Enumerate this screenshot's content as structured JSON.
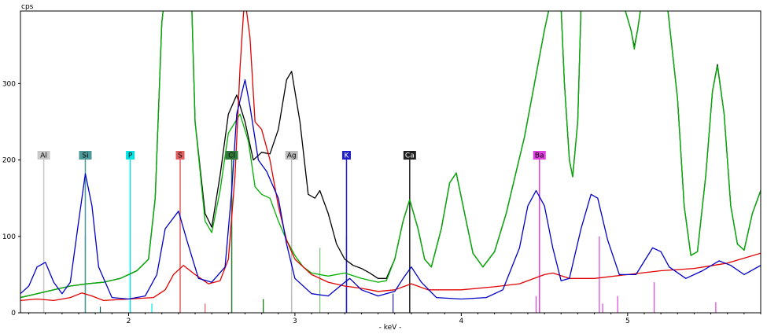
{
  "chart_data": {
    "type": "line",
    "ylabel": "cps",
    "xlabel": "- keV -",
    "xlim": [
      1.35,
      5.8
    ],
    "ylim": [
      0,
      395
    ],
    "xticks": [
      2,
      3,
      4,
      5
    ],
    "yticks": [
      0,
      100,
      200,
      300
    ],
    "grid": false,
    "series": [
      {
        "color": "#000000",
        "points": [
          [
            1.35,
            20
          ],
          [
            1.45,
            25
          ],
          [
            1.55,
            30
          ],
          [
            1.65,
            35
          ],
          [
            1.75,
            38
          ],
          [
            1.85,
            40
          ],
          [
            1.95,
            45
          ],
          [
            2.05,
            55
          ],
          [
            2.12,
            70
          ],
          [
            2.16,
            150
          ],
          [
            2.2,
            380
          ],
          [
            2.21,
            400
          ],
          [
            2.38,
            400
          ],
          [
            2.4,
            250
          ],
          [
            2.46,
            130
          ],
          [
            2.5,
            112
          ],
          [
            2.55,
            180
          ],
          [
            2.6,
            260
          ],
          [
            2.65,
            285
          ],
          [
            2.7,
            250
          ],
          [
            2.75,
            200
          ],
          [
            2.8,
            210
          ],
          [
            2.85,
            208
          ],
          [
            2.9,
            240
          ],
          [
            2.95,
            305
          ],
          [
            2.98,
            316
          ],
          [
            3.03,
            250
          ],
          [
            3.08,
            155
          ],
          [
            3.12,
            150
          ],
          [
            3.15,
            160
          ],
          [
            3.2,
            130
          ],
          [
            3.25,
            90
          ],
          [
            3.3,
            70
          ],
          [
            3.35,
            62
          ],
          [
            3.4,
            58
          ],
          [
            3.45,
            52
          ],
          [
            3.5,
            45
          ],
          [
            3.55,
            45
          ],
          [
            3.6,
            70
          ],
          [
            3.65,
            120
          ],
          [
            3.69,
            148
          ],
          [
            3.74,
            110
          ],
          [
            3.78,
            70
          ],
          [
            3.82,
            60
          ],
          [
            3.88,
            110
          ],
          [
            3.93,
            170
          ],
          [
            3.97,
            183
          ],
          [
            4.02,
            130
          ],
          [
            4.07,
            78
          ],
          [
            4.13,
            60
          ],
          [
            4.2,
            80
          ],
          [
            4.27,
            130
          ],
          [
            4.33,
            185
          ],
          [
            4.38,
            230
          ],
          [
            4.44,
            300
          ],
          [
            4.5,
            370
          ],
          [
            4.53,
            400
          ],
          [
            4.6,
            400
          ],
          [
            4.62,
            300
          ],
          [
            4.65,
            200
          ],
          [
            4.67,
            178
          ],
          [
            4.7,
            250
          ],
          [
            4.72,
            400
          ],
          [
            4.98,
            400
          ],
          [
            5.02,
            370
          ],
          [
            5.04,
            348
          ],
          [
            5.06,
            370
          ],
          [
            5.08,
            400
          ],
          [
            5.24,
            400
          ],
          [
            5.3,
            280
          ],
          [
            5.34,
            140
          ],
          [
            5.38,
            75
          ],
          [
            5.42,
            80
          ],
          [
            5.47,
            180
          ],
          [
            5.51,
            290
          ],
          [
            5.54,
            325
          ],
          [
            5.58,
            260
          ],
          [
            5.62,
            140
          ],
          [
            5.66,
            90
          ],
          [
            5.7,
            82
          ],
          [
            5.75,
            130
          ],
          [
            5.8,
            160
          ]
        ]
      },
      {
        "color": "#00b000",
        "points": [
          [
            1.35,
            20
          ],
          [
            1.45,
            25
          ],
          [
            1.55,
            30
          ],
          [
            1.65,
            35
          ],
          [
            1.75,
            38
          ],
          [
            1.85,
            40
          ],
          [
            1.95,
            45
          ],
          [
            2.05,
            55
          ],
          [
            2.12,
            70
          ],
          [
            2.16,
            150
          ],
          [
            2.2,
            380
          ],
          [
            2.21,
            400
          ],
          [
            2.38,
            400
          ],
          [
            2.4,
            250
          ],
          [
            2.46,
            120
          ],
          [
            2.5,
            105
          ],
          [
            2.55,
            160
          ],
          [
            2.6,
            235
          ],
          [
            2.67,
            260
          ],
          [
            2.72,
            225
          ],
          [
            2.76,
            165
          ],
          [
            2.8,
            155
          ],
          [
            2.85,
            150
          ],
          [
            2.9,
            120
          ],
          [
            2.95,
            95
          ],
          [
            3.0,
            75
          ],
          [
            3.05,
            60
          ],
          [
            3.1,
            52
          ],
          [
            3.2,
            48
          ],
          [
            3.3,
            52
          ],
          [
            3.4,
            45
          ],
          [
            3.5,
            40
          ],
          [
            3.55,
            42
          ],
          [
            3.6,
            70
          ],
          [
            3.65,
            120
          ],
          [
            3.69,
            148
          ],
          [
            3.74,
            110
          ],
          [
            3.78,
            70
          ],
          [
            3.82,
            60
          ],
          [
            3.88,
            110
          ],
          [
            3.93,
            170
          ],
          [
            3.97,
            183
          ],
          [
            4.02,
            130
          ],
          [
            4.07,
            78
          ],
          [
            4.13,
            60
          ],
          [
            4.2,
            80
          ],
          [
            4.27,
            130
          ],
          [
            4.33,
            185
          ],
          [
            4.38,
            230
          ],
          [
            4.44,
            300
          ],
          [
            4.5,
            370
          ],
          [
            4.53,
            400
          ],
          [
            4.6,
            400
          ],
          [
            4.62,
            300
          ],
          [
            4.65,
            200
          ],
          [
            4.67,
            178
          ],
          [
            4.7,
            250
          ],
          [
            4.72,
            400
          ],
          [
            4.98,
            400
          ],
          [
            5.02,
            370
          ],
          [
            5.04,
            345
          ],
          [
            5.06,
            370
          ],
          [
            5.08,
            400
          ],
          [
            5.24,
            400
          ],
          [
            5.3,
            280
          ],
          [
            5.34,
            140
          ],
          [
            5.38,
            75
          ],
          [
            5.42,
            80
          ],
          [
            5.47,
            180
          ],
          [
            5.51,
            290
          ],
          [
            5.54,
            323
          ],
          [
            5.58,
            260
          ],
          [
            5.62,
            140
          ],
          [
            5.66,
            90
          ],
          [
            5.7,
            82
          ],
          [
            5.75,
            130
          ],
          [
            5.8,
            160
          ]
        ]
      },
      {
        "color": "#e00000",
        "points": [
          [
            1.35,
            16
          ],
          [
            1.45,
            18
          ],
          [
            1.55,
            16
          ],
          [
            1.65,
            20
          ],
          [
            1.72,
            26
          ],
          [
            1.78,
            22
          ],
          [
            1.85,
            16
          ],
          [
            2.0,
            18
          ],
          [
            2.15,
            20
          ],
          [
            2.22,
            30
          ],
          [
            2.27,
            50
          ],
          [
            2.33,
            62
          ],
          [
            2.4,
            50
          ],
          [
            2.48,
            38
          ],
          [
            2.55,
            42
          ],
          [
            2.6,
            70
          ],
          [
            2.64,
            180
          ],
          [
            2.67,
            320
          ],
          [
            2.69,
            390
          ],
          [
            2.7,
            410
          ],
          [
            2.73,
            360
          ],
          [
            2.76,
            250
          ],
          [
            2.8,
            240
          ],
          [
            2.85,
            200
          ],
          [
            2.9,
            140
          ],
          [
            2.95,
            95
          ],
          [
            3.0,
            70
          ],
          [
            3.1,
            50
          ],
          [
            3.2,
            40
          ],
          [
            3.3,
            35
          ],
          [
            3.4,
            32
          ],
          [
            3.5,
            28
          ],
          [
            3.6,
            30
          ],
          [
            3.7,
            38
          ],
          [
            3.8,
            30
          ],
          [
            4.0,
            30
          ],
          [
            4.2,
            34
          ],
          [
            4.35,
            38
          ],
          [
            4.5,
            50
          ],
          [
            4.55,
            52
          ],
          [
            4.65,
            45
          ],
          [
            4.8,
            45
          ],
          [
            5.0,
            50
          ],
          [
            5.2,
            55
          ],
          [
            5.4,
            58
          ],
          [
            5.6,
            65
          ],
          [
            5.8,
            78
          ]
        ]
      },
      {
        "color": "#0000c8",
        "points": [
          [
            1.35,
            25
          ],
          [
            1.4,
            35
          ],
          [
            1.45,
            60
          ],
          [
            1.5,
            66
          ],
          [
            1.55,
            40
          ],
          [
            1.6,
            25
          ],
          [
            1.65,
            40
          ],
          [
            1.7,
            120
          ],
          [
            1.74,
            182
          ],
          [
            1.78,
            140
          ],
          [
            1.82,
            60
          ],
          [
            1.9,
            20
          ],
          [
            2.0,
            18
          ],
          [
            2.1,
            22
          ],
          [
            2.17,
            50
          ],
          [
            2.22,
            110
          ],
          [
            2.3,
            133
          ],
          [
            2.35,
            95
          ],
          [
            2.42,
            45
          ],
          [
            2.5,
            40
          ],
          [
            2.58,
            60
          ],
          [
            2.62,
            160
          ],
          [
            2.65,
            260
          ],
          [
            2.7,
            305
          ],
          [
            2.73,
            270
          ],
          [
            2.78,
            200
          ],
          [
            2.83,
            185
          ],
          [
            2.9,
            150
          ],
          [
            2.95,
            90
          ],
          [
            3.0,
            45
          ],
          [
            3.1,
            25
          ],
          [
            3.2,
            22
          ],
          [
            3.3,
            40
          ],
          [
            3.33,
            45
          ],
          [
            3.4,
            30
          ],
          [
            3.5,
            22
          ],
          [
            3.6,
            28
          ],
          [
            3.65,
            45
          ],
          [
            3.7,
            60
          ],
          [
            3.76,
            40
          ],
          [
            3.85,
            20
          ],
          [
            4.0,
            18
          ],
          [
            4.15,
            20
          ],
          [
            4.25,
            30
          ],
          [
            4.35,
            85
          ],
          [
            4.4,
            140
          ],
          [
            4.45,
            160
          ],
          [
            4.5,
            140
          ],
          [
            4.55,
            85
          ],
          [
            4.6,
            42
          ],
          [
            4.65,
            45
          ],
          [
            4.72,
            110
          ],
          [
            4.78,
            155
          ],
          [
            4.82,
            150
          ],
          [
            4.88,
            95
          ],
          [
            4.95,
            50
          ],
          [
            5.05,
            50
          ],
          [
            5.15,
            85
          ],
          [
            5.2,
            80
          ],
          [
            5.25,
            60
          ],
          [
            5.35,
            45
          ],
          [
            5.45,
            55
          ],
          [
            5.55,
            68
          ],
          [
            5.62,
            62
          ],
          [
            5.7,
            50
          ],
          [
            5.8,
            62
          ]
        ]
      }
    ],
    "elements": [
      {
        "label": "Al",
        "energy": 1.49,
        "color": "#c8c8c8",
        "text": "#000000"
      },
      {
        "label": "Si",
        "energy": 1.74,
        "color": "#4c9a9a",
        "text": "#000000"
      },
      {
        "label": "P",
        "energy": 2.01,
        "color": "#00e4e4",
        "text": "#000000"
      },
      {
        "label": "S",
        "energy": 2.31,
        "color": "#e06060",
        "text": "#000000"
      },
      {
        "label": "Cl",
        "energy": 2.62,
        "color": "#2f7a3a",
        "text": "#000000"
      },
      {
        "label": "Ag",
        "energy": 2.98,
        "color": "#bdbdbd",
        "text": "#000000"
      },
      {
        "label": "K",
        "energy": 3.31,
        "color": "#2020c8",
        "text": "#ffffff"
      },
      {
        "label": "Ca",
        "energy": 3.69,
        "color": "#202020",
        "text": "#ffffff"
      },
      {
        "label": "Ba",
        "energy": 4.47,
        "color": "#e040e0",
        "text": "#000000"
      }
    ],
    "marker_lines": [
      {
        "energy": 1.74,
        "value": 100,
        "color": "#006060"
      },
      {
        "energy": 1.83,
        "value": 8,
        "color": "#006060"
      },
      {
        "energy": 2.14,
        "value": 12,
        "color": "#00e4e4"
      },
      {
        "energy": 2.46,
        "value": 12,
        "color": "#e06060"
      },
      {
        "energy": 2.81,
        "value": 18,
        "color": "#007000"
      },
      {
        "energy": 2.98,
        "value": 20,
        "color": "#909090"
      },
      {
        "energy": 3.15,
        "value": 85,
        "color": "#80c080"
      },
      {
        "energy": 3.31,
        "value": 100,
        "color": "#2020c8"
      },
      {
        "energy": 3.59,
        "value": 25,
        "color": "#2020c8"
      },
      {
        "energy": 4.45,
        "value": 22,
        "color": "#e040e0"
      },
      {
        "energy": 4.83,
        "value": 100,
        "color": "#e040e0"
      },
      {
        "energy": 4.85,
        "value": 12,
        "color": "#e040e0"
      },
      {
        "energy": 4.94,
        "value": 22,
        "color": "#e040e0"
      },
      {
        "energy": 5.16,
        "value": 40,
        "color": "#e040e0"
      },
      {
        "energy": 5.53,
        "value": 14,
        "color": "#e040e0"
      }
    ]
  }
}
